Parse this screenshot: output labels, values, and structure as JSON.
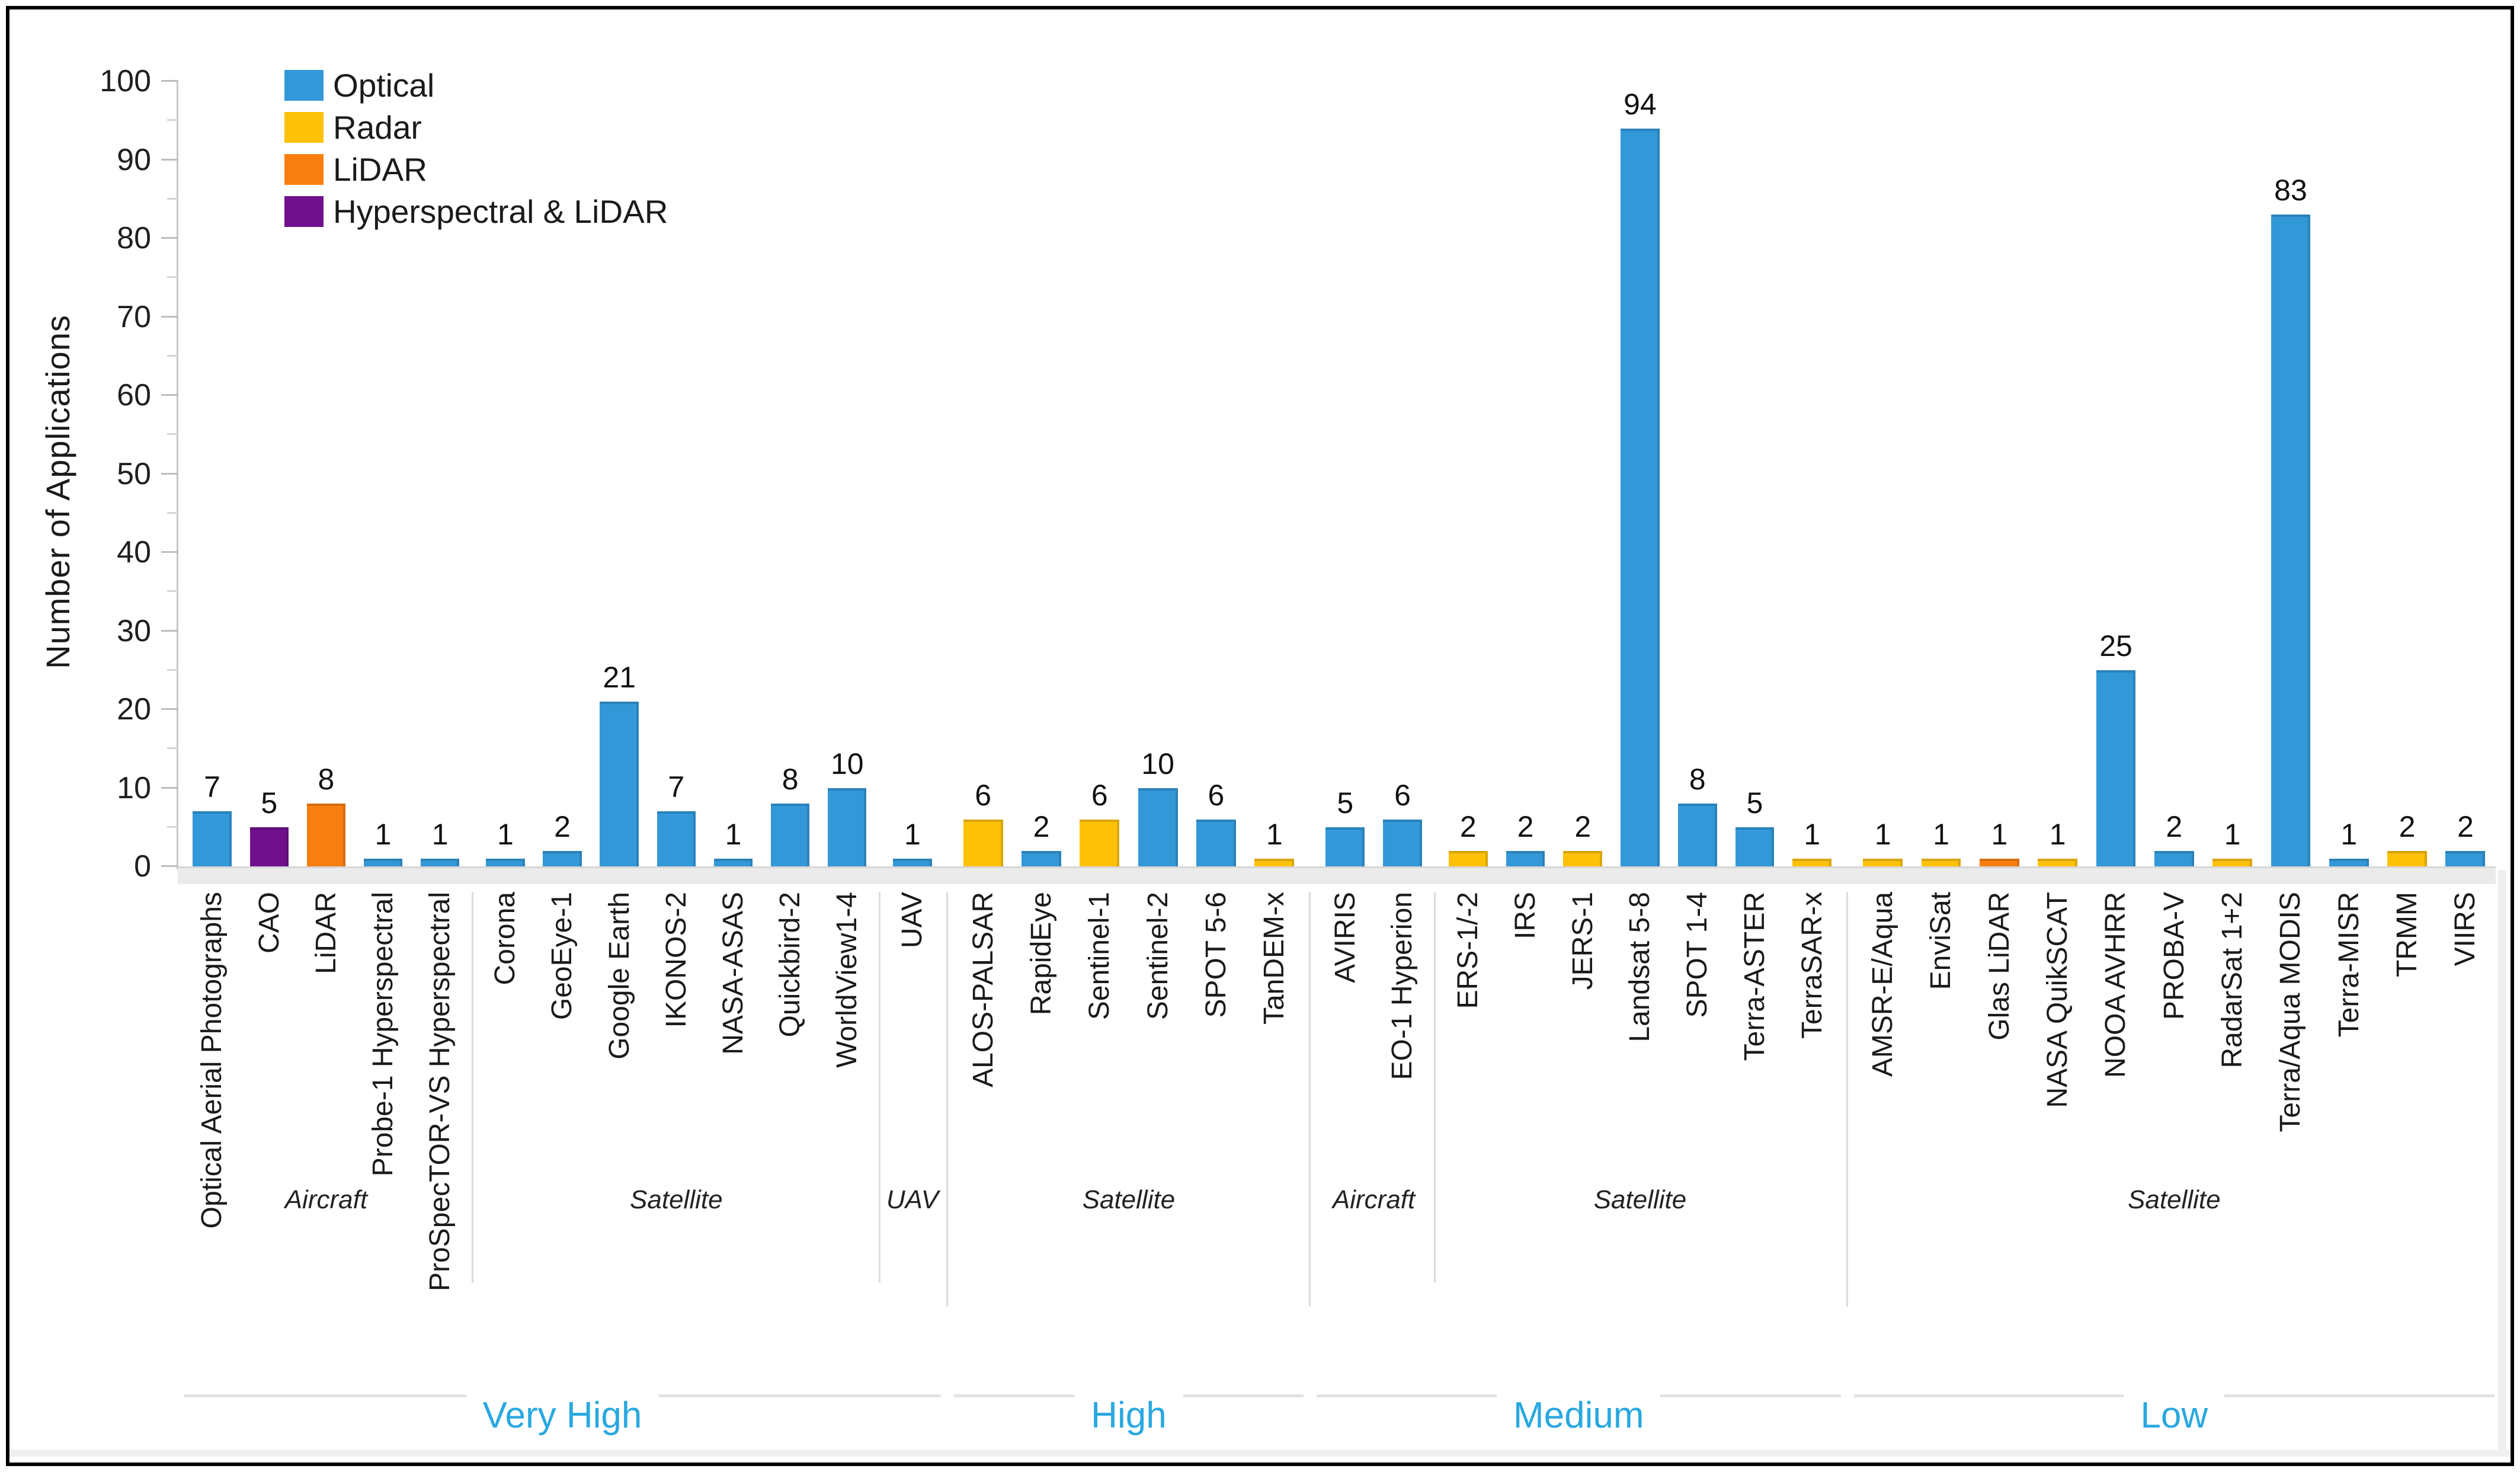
{
  "figure": {
    "background": "#ffffff",
    "border_color": "#000000"
  },
  "chart_data": {
    "type": "bar",
    "title": "",
    "ylabel": "Number of Applications",
    "xlabel": "",
    "ylim": [
      0,
      100
    ],
    "ytick_step": 10,
    "yminor_step": 5,
    "grid": false,
    "legend_position": "top-left",
    "legend": [
      {
        "label": "Optical",
        "color": "#3398d8"
      },
      {
        "label": "Radar",
        "color": "#fdc107"
      },
      {
        "label": "LiDAR",
        "color": "#f97e10"
      },
      {
        "label": "Hyperspectral & LiDAR",
        "color": "#70108c"
      }
    ],
    "colors": {
      "resolution_label": "#29a8e0",
      "separator": "#dcdcdc",
      "axis": "#c6c6c6",
      "text": "#1a1a1a",
      "baseline_band": "#ebebeb"
    },
    "resolution_groups": [
      {
        "label": "Very High",
        "platforms": [
          {
            "label": "Aircraft",
            "bars": [
              {
                "name": "Optical Aerial Photographs",
                "value": 7,
                "series": "Optical"
              },
              {
                "name": "CAO",
                "value": 5,
                "series": "Hyperspectral & LiDAR"
              },
              {
                "name": "LiDAR",
                "value": 8,
                "series": "LiDAR"
              },
              {
                "name": "Probe-1 Hyperspectral",
                "value": 1,
                "series": "Optical"
              },
              {
                "name": "ProSpecTOR-VS Hyperspectral",
                "value": 1,
                "series": "Optical"
              }
            ]
          },
          {
            "label": "Satellite",
            "bars": [
              {
                "name": "Corona",
                "value": 1,
                "series": "Optical"
              },
              {
                "name": "GeoEye-1",
                "value": 2,
                "series": "Optical"
              },
              {
                "name": "Google Earth",
                "value": 21,
                "series": "Optical"
              },
              {
                "name": "IKONOS-2",
                "value": 7,
                "series": "Optical"
              },
              {
                "name": "NASA-ASAS",
                "value": 1,
                "series": "Optical"
              },
              {
                "name": "Quickbird-2",
                "value": 8,
                "series": "Optical"
              },
              {
                "name": "WorldView1-4",
                "value": 10,
                "series": "Optical"
              }
            ]
          },
          {
            "label": "UAV",
            "bars": [
              {
                "name": "UAV",
                "value": 1,
                "series": "Optical"
              }
            ]
          }
        ]
      },
      {
        "label": "High",
        "platforms": [
          {
            "label": "Satellite",
            "bars": [
              {
                "name": "ALOS-PALSAR",
                "value": 6,
                "series": "Radar"
              },
              {
                "name": "RapidEye",
                "value": 2,
                "series": "Optical"
              },
              {
                "name": "Sentinel-1",
                "value": 6,
                "series": "Radar"
              },
              {
                "name": "Sentinel-2",
                "value": 10,
                "series": "Optical"
              },
              {
                "name": "SPOT 5-6",
                "value": 6,
                "series": "Optical"
              },
              {
                "name": "TanDEM-x",
                "value": 1,
                "series": "Radar"
              }
            ]
          }
        ]
      },
      {
        "label": "Medium",
        "platforms": [
          {
            "label": "Aircraft",
            "bars": [
              {
                "name": "AVIRIS",
                "value": 5,
                "series": "Optical"
              },
              {
                "name": "EO-1 Hyperion",
                "value": 6,
                "series": "Optical"
              }
            ]
          },
          {
            "label": "Satellite",
            "bars": [
              {
                "name": "ERS-1/-2",
                "value": 2,
                "series": "Radar"
              },
              {
                "name": "IRS",
                "value": 2,
                "series": "Optical"
              },
              {
                "name": "JERS-1",
                "value": 2,
                "series": "Radar"
              },
              {
                "name": "Landsat 5-8",
                "value": 94,
                "series": "Optical"
              },
              {
                "name": "SPOT 1-4",
                "value": 8,
                "series": "Optical"
              },
              {
                "name": "Terra-ASTER",
                "value": 5,
                "series": "Optical"
              },
              {
                "name": "TerraSAR-x",
                "value": 1,
                "series": "Radar"
              }
            ]
          }
        ]
      },
      {
        "label": "Low",
        "platforms": [
          {
            "label": "Satellite",
            "bars": [
              {
                "name": "AMSR-E/Aqua",
                "value": 1,
                "series": "Radar"
              },
              {
                "name": "EnviSat",
                "value": 1,
                "series": "Radar"
              },
              {
                "name": "Glas LiDAR",
                "value": 1,
                "series": "LiDAR"
              },
              {
                "name": "NASA QuikSCAT",
                "value": 1,
                "series": "Radar"
              },
              {
                "name": "NOOA AVHRR",
                "value": 25,
                "series": "Optical"
              },
              {
                "name": "PROBA-V",
                "value": 2,
                "series": "Optical"
              },
              {
                "name": "RadarSat 1+2",
                "value": 1,
                "series": "Radar"
              },
              {
                "name": "Terra/Aqua MODIS",
                "value": 83,
                "series": "Optical"
              },
              {
                "name": "Terra-MISR",
                "value": 1,
                "series": "Optical"
              },
              {
                "name": "TRMM",
                "value": 2,
                "series": "Radar"
              },
              {
                "name": "VIIRS",
                "value": 2,
                "series": "Optical"
              }
            ]
          }
        ]
      }
    ]
  }
}
